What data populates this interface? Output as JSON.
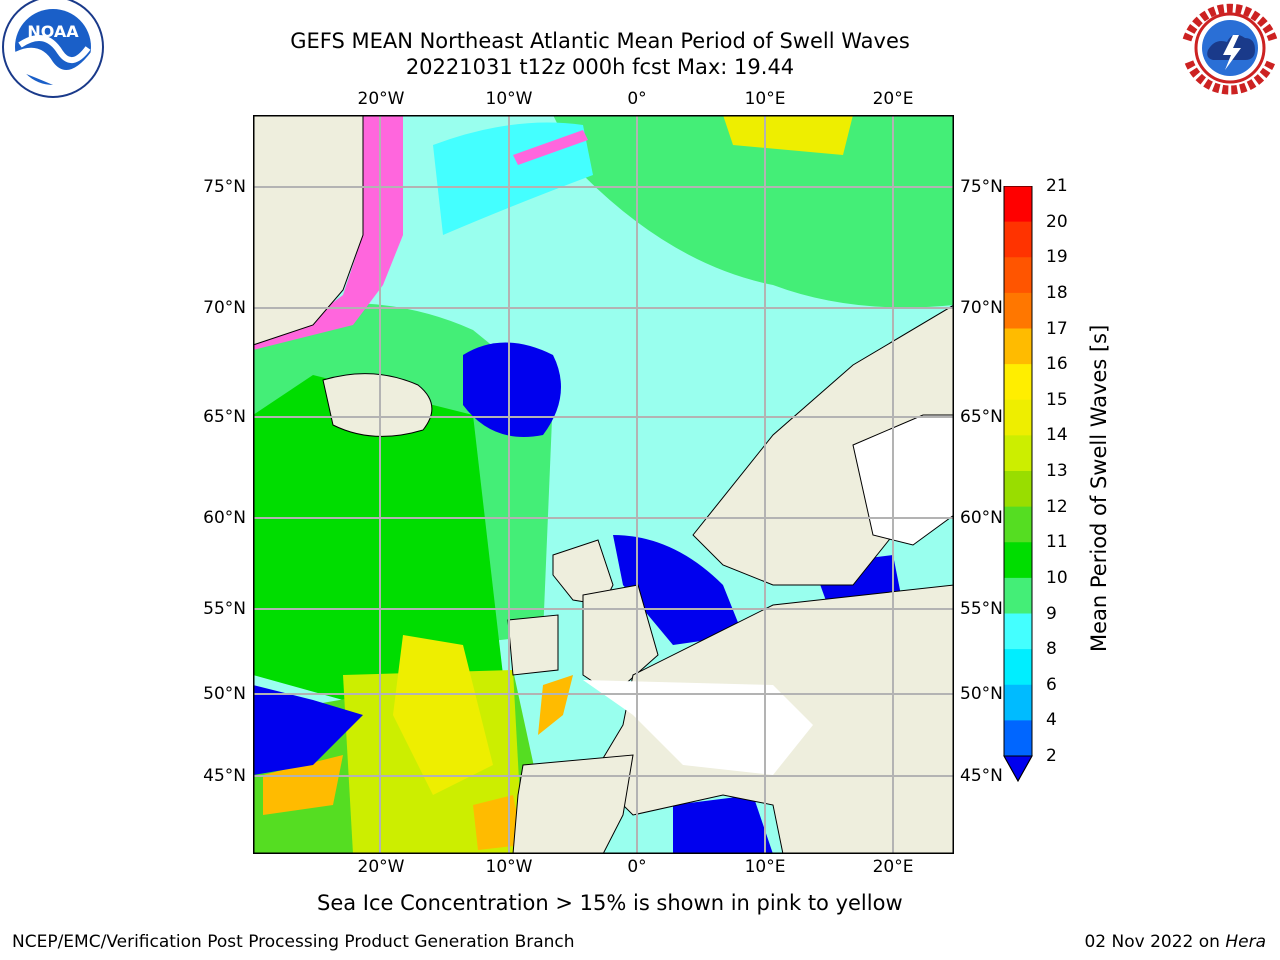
{
  "header": {
    "title_line1": "GEFS MEAN Northeast Atlantic Mean Period of Swell Waves",
    "title_line2": "20221031 t12z 000h fcst   Max: 19.44"
  },
  "logos": {
    "left": "noaa-logo",
    "right": "national-weather-service-logo",
    "left_text": "NOAA",
    "left_ring_text": "NATIONAL OCEANIC AND ATMOSPHERIC ADMINISTRATION · U.S. DEPARTMENT OF COMMERCE",
    "right_ring_text": "NATIONAL WEATHER SERVICE"
  },
  "map": {
    "lon_labels": [
      "20°W",
      "10°W",
      "0°",
      "10°E",
      "20°E"
    ],
    "lat_labels": [
      "75°N",
      "70°N",
      "65°N",
      "60°N",
      "55°N",
      "50°N",
      "45°N"
    ],
    "colors": {
      "land": "#eeeedd",
      "gridline": "#b3b3b3"
    }
  },
  "colorbar": {
    "title": "Mean Period of Swell Waves [s]",
    "ticks": [
      "21",
      "20",
      "19",
      "18",
      "17",
      "16",
      "15",
      "14",
      "13",
      "12",
      "11",
      "10",
      "9",
      "8",
      "6",
      "4",
      "2"
    ],
    "colors": [
      "#ff0000",
      "#ff3300",
      "#ff5500",
      "#ff7700",
      "#ff9900",
      "#ffbb00",
      "#ffee00",
      "#eeee00",
      "#ccee00",
      "#99dd00",
      "#55dd22",
      "#00dd00",
      "#44ee77",
      "#99ffee",
      "#44ffff",
      "#00eeff",
      "#00bbff",
      "#0066ff",
      "#0000ee"
    ]
  },
  "caption": "Sea Ice Concentration > 15% is shown in pink to yellow",
  "footer": {
    "left": "NCEP/EMC/Verification Post Processing Product Generation Branch",
    "date": "02 Nov 2022 on ",
    "machine": "Hera"
  }
}
